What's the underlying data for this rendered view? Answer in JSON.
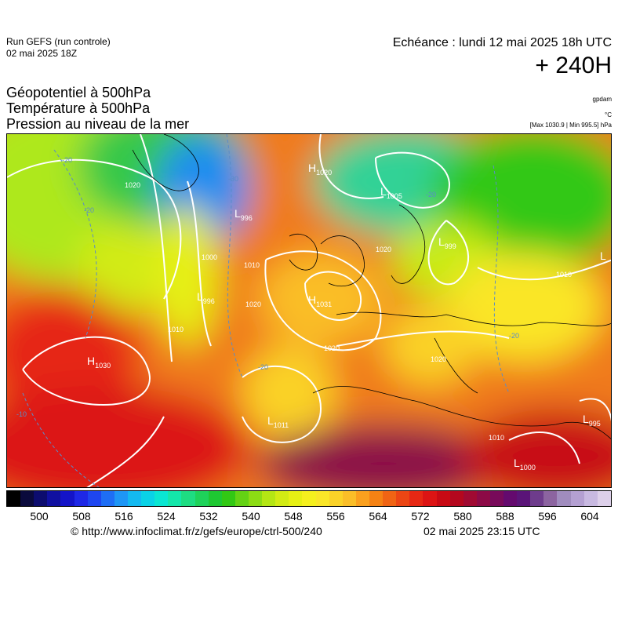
{
  "header": {
    "run": "Run GEFS (run controle)",
    "run_date": "02 mai 2025 18Z",
    "valid_time": "Echéance : lundi 12 mai 2025 18h UTC",
    "lead_time": "+ 240H"
  },
  "parameters": {
    "line1": "Géopotentiel à 500hPa",
    "line2": "Température à 500hPa",
    "line3": "Pression au niveau de la mer"
  },
  "units": {
    "geopotential": "gpdam",
    "temperature": "°C",
    "extremes": "[Max 1030.9 | Min 995.5] hPa"
  },
  "pressure_centers": [
    {
      "type": "H",
      "value": "1020"
    },
    {
      "type": "L",
      "value": "1005"
    },
    {
      "type": "L",
      "value": "996"
    },
    {
      "type": "L",
      "value": "996"
    },
    {
      "type": "L",
      "value": "999"
    },
    {
      "type": "H",
      "value": "1031"
    },
    {
      "type": "H",
      "value": "1030"
    },
    {
      "type": "L",
      "value": "1011"
    },
    {
      "type": "L",
      "value": "995"
    },
    {
      "type": "L",
      "value": "1000"
    },
    {
      "type": "L",
      "value": ""
    }
  ],
  "isobar_labels": [
    "1020",
    "1010",
    "1000",
    "1020",
    "1010",
    "1020",
    "1020",
    "1010",
    "1020",
    "1010"
  ],
  "isotherm_labels": [
    "-20",
    "-20",
    "-10",
    "-20",
    "-30",
    "-20",
    "-20"
  ],
  "colorbar": {
    "ticks": [
      "500",
      "508",
      "516",
      "524",
      "532",
      "540",
      "548",
      "556",
      "564",
      "572",
      "580",
      "588",
      "596",
      "604"
    ],
    "colors": [
      "#000000",
      "#0a0a3c",
      "#0c0c6e",
      "#1010a0",
      "#1414c8",
      "#1e28e6",
      "#1e46f0",
      "#1e6ef5",
      "#1e96f5",
      "#14b9f0",
      "#0ad2e6",
      "#0ae6d2",
      "#14e6aa",
      "#1edc82",
      "#1ed25a",
      "#1ec832",
      "#32c814",
      "#64d214",
      "#8cdc14",
      "#b4e614",
      "#d2eb14",
      "#e6f014",
      "#f5f01e",
      "#fae628",
      "#fad228",
      "#fabe28",
      "#faa01e",
      "#f58214",
      "#f06414",
      "#eb4614",
      "#e62814",
      "#dc1414",
      "#c80a14",
      "#b4081e",
      "#a00a32",
      "#8c0a46",
      "#780a5a",
      "#640a6e",
      "#5a1478",
      "#6e3c8c",
      "#8c64a0",
      "#a08cbe",
      "#b4a0d2",
      "#c8b9e1",
      "#ddd0ea"
    ]
  },
  "footer": {
    "copyright": "© http://www.infoclimat.fr/z/gefs/europe/ctrl-500/240",
    "generated": "02 mai 2025 23:15 UTC"
  }
}
